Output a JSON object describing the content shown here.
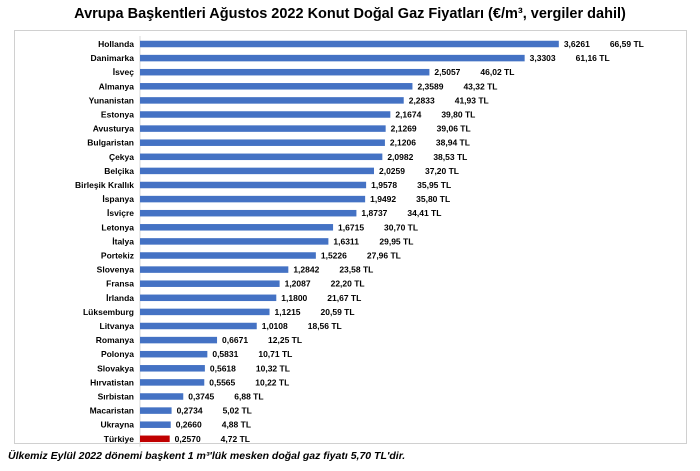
{
  "chart_data": {
    "type": "bar",
    "orientation": "horizontal",
    "title": "Avrupa Başkentleri Ağustos 2022 Konut Doğal Gaz Fiyatları (€/m³, vergiler dahil)",
    "xlabel": "",
    "ylabel": "",
    "grid": false,
    "categories": [
      "Hollanda",
      "Danimarka",
      "İsveç",
      "Almanya",
      "Yunanistan",
      "Estonya",
      "Avusturya",
      "Bulgaristan",
      "Çekya",
      "Belçika",
      "Birleşik Krallık",
      "İspanya",
      "İsviçre",
      "Letonya",
      "İtalya",
      "Portekiz",
      "Slovenya",
      "Fransa",
      "İrlanda",
      "Lüksemburg",
      "Litvanya",
      "Romanya",
      "Polonya",
      "Slovakya",
      "Hırvatistan",
      "Sırbistan",
      "Macaristan",
      "Ukrayna",
      "Türkiye"
    ],
    "values": [
      3.6261,
      3.3303,
      2.5057,
      2.3589,
      2.2833,
      2.1674,
      2.1269,
      2.1206,
      2.0982,
      2.0259,
      1.9578,
      1.9492,
      1.8737,
      1.6715,
      1.6311,
      1.5226,
      1.2842,
      1.2087,
      1.18,
      1.1215,
      1.0108,
      0.6671,
      0.5831,
      0.5618,
      0.5565,
      0.3745,
      0.2734,
      0.266,
      0.257
    ],
    "value_labels": [
      "3,6261",
      "3,3303",
      "2,5057",
      "2,3589",
      "2,2833",
      "2,1674",
      "2,1269",
      "2,1206",
      "2,0982",
      "2,0259",
      "1,9578",
      "1,9492",
      "1,8737",
      "1,6715",
      "1,6311",
      "1,5226",
      "1,2842",
      "1,2087",
      "1,1800",
      "1,1215",
      "1,0108",
      "0,6671",
      "0,5831",
      "0,5618",
      "0,5565",
      "0,3745",
      "0,2734",
      "0,2660",
      "0,2570"
    ],
    "tl_labels": [
      "66,59 TL",
      "61,16 TL",
      "46,02 TL",
      "43,32 TL",
      "41,93 TL",
      "39,80 TL",
      "39,06 TL",
      "38,94 TL",
      "38,53 TL",
      "37,20 TL",
      "35,95 TL",
      "35,80 TL",
      "34,41 TL",
      "30,70 TL",
      "29,95 TL",
      "27,96 TL",
      "23,58 TL",
      "22,20 TL",
      "21,67 TL",
      "20,59 TL",
      "18,56 TL",
      "12,25 TL",
      "10,71 TL",
      "10,32 TL",
      "10,22 TL",
      "6,88 TL",
      "5,02 TL",
      "4,88 TL",
      "4,72 TL"
    ],
    "colors": {
      "default": "#4472c4",
      "highlight": "#c00000"
    },
    "highlight_category": "Türkiye"
  },
  "footnote": "Ülkemiz Eylül 2022 dönemi başkent 1 m³'lük mesken doğal gaz fiyatı 5,70 TL'dir."
}
